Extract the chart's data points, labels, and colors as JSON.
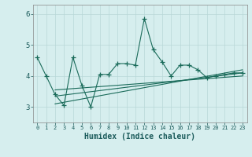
{
  "title": "",
  "xlabel": "Humidex (Indice chaleur)",
  "x_values": [
    0,
    1,
    2,
    3,
    4,
    5,
    6,
    7,
    8,
    9,
    10,
    11,
    12,
    13,
    14,
    15,
    16,
    17,
    18,
    19,
    20,
    21,
    22,
    23
  ],
  "y_values": [
    4.6,
    4.0,
    3.4,
    3.05,
    4.6,
    3.7,
    3.0,
    4.05,
    4.05,
    4.4,
    4.4,
    4.35,
    5.85,
    4.85,
    4.45,
    4.0,
    4.35,
    4.35,
    4.2,
    3.95,
    4.0,
    4.05,
    4.1,
    4.1
  ],
  "line_color": "#1a6b5a",
  "marker_style": "+",
  "marker_size": 4,
  "ylim": [
    2.5,
    6.3
  ],
  "xlim": [
    -0.5,
    23.5
  ],
  "yticks": [
    3,
    4,
    5,
    6
  ],
  "background_color": "#d6eeee",
  "grid_color": "#b8d8d8",
  "regression_color": "#1a6b5a",
  "reg_lines": [
    {
      "x0": 2,
      "x1": 23,
      "y0": 3.35,
      "y1": 4.1
    },
    {
      "x0": 2,
      "x1": 23,
      "y0": 3.1,
      "y1": 4.2
    },
    {
      "x0": 2,
      "x1": 23,
      "y0": 3.55,
      "y1": 4.0
    }
  ]
}
